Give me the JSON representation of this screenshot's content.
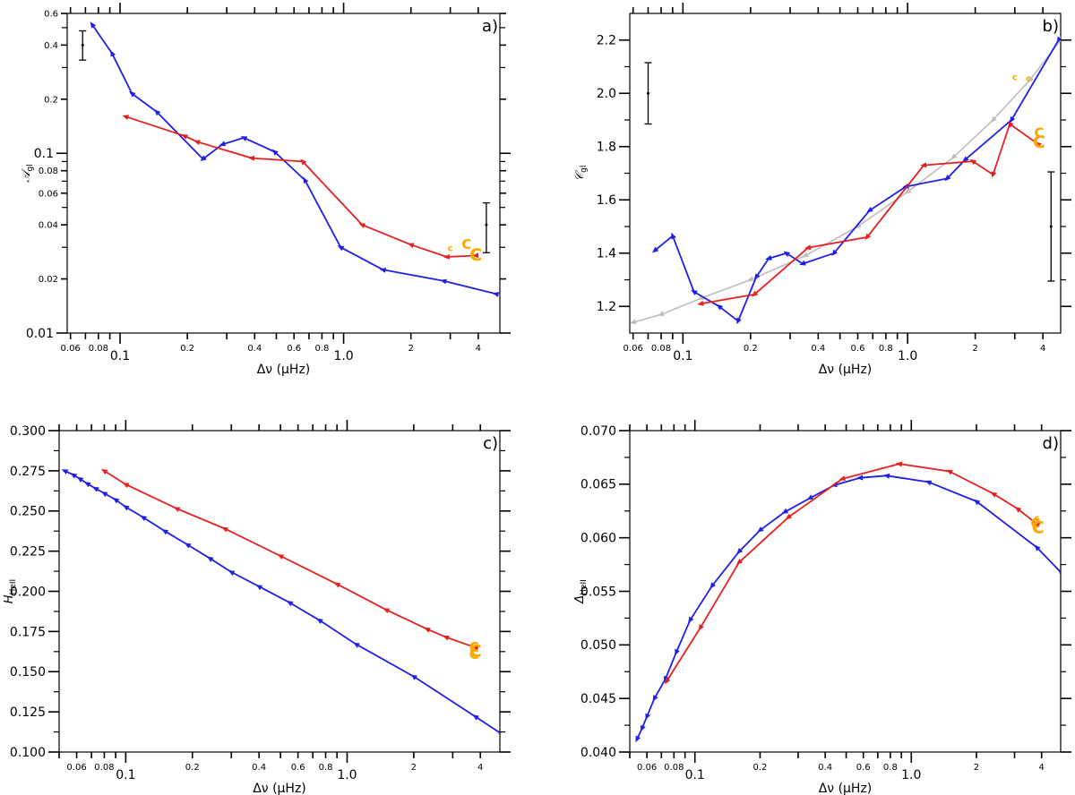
{
  "figure": {
    "colors": {
      "blue": "#1f1fe8",
      "red": "#e81f1f",
      "gray": "#bdbdbd",
      "orange": "#ffa500",
      "black": "#000000"
    }
  },
  "chart_data": [
    {
      "id": "a",
      "type": "line",
      "panel_label": "a)",
      "xlabel": "Δν (μHz)",
      "ylabel": "𝒜gl",
      "xscale": "log",
      "yscale": "log",
      "xlim": [
        0.058,
        5.0
      ],
      "ylim": [
        0.01,
        0.6
      ],
      "xticks": [
        {
          "v": 0.06,
          "t": "0.06",
          "major": false
        },
        {
          "v": 0.08,
          "t": "0.08",
          "major": false
        },
        {
          "v": 0.1,
          "t": "0.1",
          "major": true
        },
        {
          "v": 0.2,
          "t": "0.2",
          "major": false
        },
        {
          "v": 0.4,
          "t": "0.4",
          "major": false
        },
        {
          "v": 0.6,
          "t": "0.6",
          "major": false
        },
        {
          "v": 0.8,
          "t": "0.8",
          "major": false
        },
        {
          "v": 1.0,
          "t": "1.0",
          "major": true
        },
        {
          "v": 2,
          "t": "2",
          "major": false
        },
        {
          "v": 4,
          "t": "4",
          "major": false
        }
      ],
      "yticks": [
        {
          "v": 0.01,
          "t": "0.01",
          "major": true
        },
        {
          "v": 0.02,
          "t": "0.02",
          "major": false
        },
        {
          "v": 0.04,
          "t": "0.04",
          "major": false
        },
        {
          "v": 0.06,
          "t": "0.06",
          "major": false
        },
        {
          "v": 0.08,
          "t": "0.08",
          "major": false
        },
        {
          "v": 0.1,
          "t": "0.1",
          "major": true
        },
        {
          "v": 0.2,
          "t": "0.2",
          "major": false
        },
        {
          "v": 0.4,
          "t": "0.4",
          "major": false
        },
        {
          "v": 0.6,
          "t": "0.6",
          "major": false
        }
      ],
      "series": [
        {
          "name": "blue track",
          "color": "blue",
          "points": [
            [
              0.075,
              0.52
            ],
            [
              0.092,
              0.36
            ],
            [
              0.113,
              0.215
            ],
            [
              0.146,
              0.17
            ],
            [
              0.235,
              0.093
            ],
            [
              0.287,
              0.112
            ],
            [
              0.358,
              0.122
            ],
            [
              0.491,
              0.102
            ],
            [
              0.671,
              0.071
            ],
            [
              0.97,
              0.03
            ],
            [
              1.5,
              0.0225
            ],
            [
              2.8,
              0.0195
            ],
            [
              4.8,
              0.0165
            ]
          ]
        },
        {
          "name": "red track",
          "color": "red",
          "points": [
            [
              0.106,
              0.16
            ],
            [
              0.194,
              0.125
            ],
            [
              0.221,
              0.116
            ],
            [
              0.388,
              0.094
            ],
            [
              0.656,
              0.09
            ],
            [
              1.21,
              0.04
            ],
            [
              2.0,
              0.031
            ],
            [
              2.9,
              0.0265
            ],
            [
              3.9,
              0.027
            ]
          ]
        }
      ],
      "markers": [
        {
          "x": 3.0,
          "y": 0.0295,
          "size": "small"
        },
        {
          "x": 3.55,
          "y": 0.031,
          "size": "medium"
        },
        {
          "x": 3.9,
          "y": 0.027,
          "size": "large"
        }
      ],
      "errorbars": [
        {
          "x": 0.068,
          "y": 0.4,
          "low": 0.33,
          "high": 0.48
        },
        {
          "x": 4.35,
          "y": 0.04,
          "low": 0.028,
          "high": 0.053
        }
      ]
    },
    {
      "id": "b",
      "type": "line",
      "panel_label": "b)",
      "xlabel": "Δν (μHz)",
      "ylabel": "𝒞gl",
      "xscale": "log",
      "yscale": "linear",
      "xlim": [
        0.058,
        4.8
      ],
      "ylim": [
        1.1,
        2.3
      ],
      "xticks": [
        {
          "v": 0.06,
          "t": "0.06",
          "major": false
        },
        {
          "v": 0.08,
          "t": "0.08",
          "major": false
        },
        {
          "v": 0.1,
          "t": "0.1",
          "major": true
        },
        {
          "v": 0.2,
          "t": "0.2",
          "major": false
        },
        {
          "v": 0.4,
          "t": "0.4",
          "major": false
        },
        {
          "v": 0.6,
          "t": "0.6",
          "major": false
        },
        {
          "v": 0.8,
          "t": "0.8",
          "major": false
        },
        {
          "v": 1.0,
          "t": "1.0",
          "major": true
        },
        {
          "v": 2,
          "t": "2",
          "major": false
        },
        {
          "v": 4,
          "t": "4",
          "major": false
        }
      ],
      "yticks": [
        {
          "v": 1.2,
          "t": "1.2",
          "major": true
        },
        {
          "v": 1.4,
          "t": "1.4",
          "major": true
        },
        {
          "v": 1.6,
          "t": "1.6",
          "major": true
        },
        {
          "v": 1.8,
          "t": "1.8",
          "major": true
        },
        {
          "v": 2.0,
          "t": "2.0",
          "major": true
        },
        {
          "v": 2.2,
          "t": "2.2",
          "major": true
        }
      ],
      "series": [
        {
          "name": "gray fit",
          "color": "gray",
          "points": [
            [
              0.06,
              1.14
            ],
            [
              0.08,
              1.17
            ],
            [
              0.12,
              1.23
            ],
            [
              0.2,
              1.3
            ],
            [
              0.35,
              1.39
            ],
            [
              0.6,
              1.5
            ],
            [
              1.0,
              1.63
            ],
            [
              1.6,
              1.76
            ],
            [
              2.4,
              1.9
            ],
            [
              3.5,
              2.05
            ],
            [
              4.8,
              2.2
            ]
          ]
        },
        {
          "name": "blue track",
          "color": "blue",
          "points": [
            [
              0.075,
              1.41
            ],
            [
              0.09,
              1.465
            ],
            [
              0.112,
              1.255
            ],
            [
              0.145,
              1.2
            ],
            [
              0.176,
              1.145
            ],
            [
              0.212,
              1.31
            ],
            [
              0.241,
              1.38
            ],
            [
              0.289,
              1.4
            ],
            [
              0.341,
              1.36
            ],
            [
              0.47,
              1.4
            ],
            [
              0.677,
              1.56
            ],
            [
              0.983,
              1.65
            ],
            [
              1.5,
              1.68
            ],
            [
              1.8,
              1.75
            ],
            [
              2.9,
              1.9
            ],
            [
              4.7,
              2.2
            ]
          ]
        },
        {
          "name": "red track",
          "color": "red",
          "points": [
            [
              0.12,
              1.21
            ],
            [
              0.208,
              1.245
            ],
            [
              0.36,
              1.42
            ],
            [
              0.66,
              1.46
            ],
            [
              1.18,
              1.73
            ],
            [
              1.95,
              1.745
            ],
            [
              2.4,
              1.695
            ],
            [
              2.85,
              1.885
            ],
            [
              3.8,
              1.81
            ]
          ]
        }
      ],
      "markers": [
        {
          "x": 3.0,
          "y": 2.06,
          "size": "small"
        },
        {
          "x": 3.45,
          "y": 2.055,
          "size": "small"
        },
        {
          "x": 3.85,
          "y": 1.85,
          "size": "medium"
        },
        {
          "x": 3.85,
          "y": 1.815,
          "size": "large"
        }
      ],
      "errorbars": [
        {
          "x": 0.07,
          "y": 2.0,
          "low": 1.885,
          "high": 2.115
        },
        {
          "x": 4.35,
          "y": 1.5,
          "low": 1.295,
          "high": 1.705
        }
      ]
    },
    {
      "id": "c",
      "type": "line",
      "panel_label": "c)",
      "xlabel": "Δν (μHz)",
      "ylabel": "HHeII",
      "xscale": "log",
      "yscale": "linear",
      "xlim": [
        0.05,
        4.9
      ],
      "ylim": [
        0.1,
        0.3
      ],
      "xticks": [
        {
          "v": 0.06,
          "t": "0.06",
          "major": false
        },
        {
          "v": 0.08,
          "t": "0.08",
          "major": false
        },
        {
          "v": 0.1,
          "t": "0.1",
          "major": true
        },
        {
          "v": 0.2,
          "t": "0.2",
          "major": false
        },
        {
          "v": 0.4,
          "t": "0.4",
          "major": false
        },
        {
          "v": 0.6,
          "t": "0.6",
          "major": false
        },
        {
          "v": 0.8,
          "t": "0.8",
          "major": false
        },
        {
          "v": 1.0,
          "t": "1.0",
          "major": true
        },
        {
          "v": 2,
          "t": "2",
          "major": false
        },
        {
          "v": 4,
          "t": "4",
          "major": false
        }
      ],
      "yticks": [
        {
          "v": 0.1,
          "t": "0.100",
          "major": true
        },
        {
          "v": 0.125,
          "t": "0.125",
          "major": true
        },
        {
          "v": 0.15,
          "t": "0.150",
          "major": true
        },
        {
          "v": 0.175,
          "t": "0.175",
          "major": true
        },
        {
          "v": 0.2,
          "t": "0.200",
          "major": true
        },
        {
          "v": 0.225,
          "t": "0.225",
          "major": true
        },
        {
          "v": 0.25,
          "t": "0.250",
          "major": true
        },
        {
          "v": 0.275,
          "t": "0.275",
          "major": true
        },
        {
          "v": 0.3,
          "t": "0.300",
          "major": true
        }
      ],
      "series": [
        {
          "name": "blue track",
          "color": "blue",
          "points": [
            [
              0.053,
              0.275
            ],
            [
              0.058,
              0.2725
            ],
            [
              0.062,
              0.27
            ],
            [
              0.067,
              0.267
            ],
            [
              0.073,
              0.264
            ],
            [
              0.08,
              0.261
            ],
            [
              0.09,
              0.257
            ],
            [
              0.1,
              0.2525
            ],
            [
              0.12,
              0.246
            ],
            [
              0.15,
              0.2375
            ],
            [
              0.19,
              0.229
            ],
            [
              0.24,
              0.2205
            ],
            [
              0.3,
              0.212
            ],
            [
              0.4,
              0.203
            ],
            [
              0.55,
              0.193
            ],
            [
              0.75,
              0.182
            ],
            [
              1.1,
              0.167
            ],
            [
              2.0,
              0.147
            ],
            [
              3.8,
              0.122
            ],
            [
              4.9,
              0.112
            ]
          ]
        },
        {
          "name": "red track",
          "color": "red",
          "points": [
            [
              0.08,
              0.275
            ],
            [
              0.1,
              0.2665
            ],
            [
              0.17,
              0.2515
            ],
            [
              0.28,
              0.239
            ],
            [
              0.5,
              0.222
            ],
            [
              0.9,
              0.2045
            ],
            [
              1.5,
              0.1885
            ],
            [
              2.3,
              0.1765
            ],
            [
              2.8,
              0.1715
            ],
            [
              3.8,
              0.165
            ]
          ]
        }
      ],
      "markers": [
        {
          "x": 3.75,
          "y": 0.165,
          "size": "medium"
        },
        {
          "x": 3.8,
          "y": 0.1625,
          "size": "large"
        },
        {
          "x": 3.75,
          "y": 0.1605,
          "size": "medium"
        }
      ],
      "errorbars": []
    },
    {
      "id": "d",
      "type": "line",
      "panel_label": "d)",
      "xlabel": "Δν (μHz)",
      "ylabel": "ΔHeII",
      "xscale": "log",
      "yscale": "linear",
      "xlim": [
        0.05,
        4.9
      ],
      "ylim": [
        0.04,
        0.07
      ],
      "xticks": [
        {
          "v": 0.06,
          "t": "0.06",
          "major": false
        },
        {
          "v": 0.08,
          "t": "0.08",
          "major": false
        },
        {
          "v": 0.1,
          "t": "0.1",
          "major": true
        },
        {
          "v": 0.2,
          "t": "0.2",
          "major": false
        },
        {
          "v": 0.4,
          "t": "0.4",
          "major": false
        },
        {
          "v": 0.6,
          "t": "0.6",
          "major": false
        },
        {
          "v": 0.8,
          "t": "0.8",
          "major": false
        },
        {
          "v": 1.0,
          "t": "1.0",
          "major": true
        },
        {
          "v": 2,
          "t": "2",
          "major": false
        },
        {
          "v": 4,
          "t": "4",
          "major": false
        }
      ],
      "yticks": [
        {
          "v": 0.04,
          "t": "0.040",
          "major": true
        },
        {
          "v": 0.045,
          "t": "0.045",
          "major": true
        },
        {
          "v": 0.05,
          "t": "0.050",
          "major": true
        },
        {
          "v": 0.055,
          "t": "0.055",
          "major": true
        },
        {
          "v": 0.06,
          "t": "0.060",
          "major": true
        },
        {
          "v": 0.065,
          "t": "0.065",
          "major": true
        },
        {
          "v": 0.07,
          "t": "0.070",
          "major": true
        }
      ],
      "series": [
        {
          "name": "blue track",
          "color": "blue",
          "points": [
            [
              0.054,
              0.0412
            ],
            [
              0.057,
              0.0422
            ],
            [
              0.06,
              0.0433
            ],
            [
              0.065,
              0.045
            ],
            [
              0.073,
              0.0468
            ],
            [
              0.082,
              0.0493
            ],
            [
              0.095,
              0.0523
            ],
            [
              0.12,
              0.0555
            ],
            [
              0.16,
              0.0587
            ],
            [
              0.2,
              0.0607
            ],
            [
              0.26,
              0.0624
            ],
            [
              0.34,
              0.0637
            ],
            [
              0.44,
              0.0649
            ],
            [
              0.58,
              0.0656
            ],
            [
              0.77,
              0.0658
            ],
            [
              1.2,
              0.0652
            ],
            [
              2.0,
              0.0634
            ],
            [
              3.8,
              0.0591
            ],
            [
              4.9,
              0.0568
            ]
          ]
        },
        {
          "name": "red track",
          "color": "red",
          "points": [
            [
              0.074,
              0.0466
            ],
            [
              0.106,
              0.0516
            ],
            [
              0.16,
              0.0577
            ],
            [
              0.27,
              0.0619
            ],
            [
              0.48,
              0.0655
            ],
            [
              0.88,
              0.0669
            ],
            [
              1.5,
              0.0662
            ],
            [
              2.4,
              0.0641
            ],
            [
              3.1,
              0.0627
            ],
            [
              3.8,
              0.0613
            ]
          ]
        }
      ],
      "markers": [
        {
          "x": 3.8,
          "y": 0.0618,
          "size": "small"
        },
        {
          "x": 3.75,
          "y": 0.0613,
          "size": "medium"
        },
        {
          "x": 3.85,
          "y": 0.0609,
          "size": "large"
        }
      ],
      "errorbars": []
    }
  ]
}
